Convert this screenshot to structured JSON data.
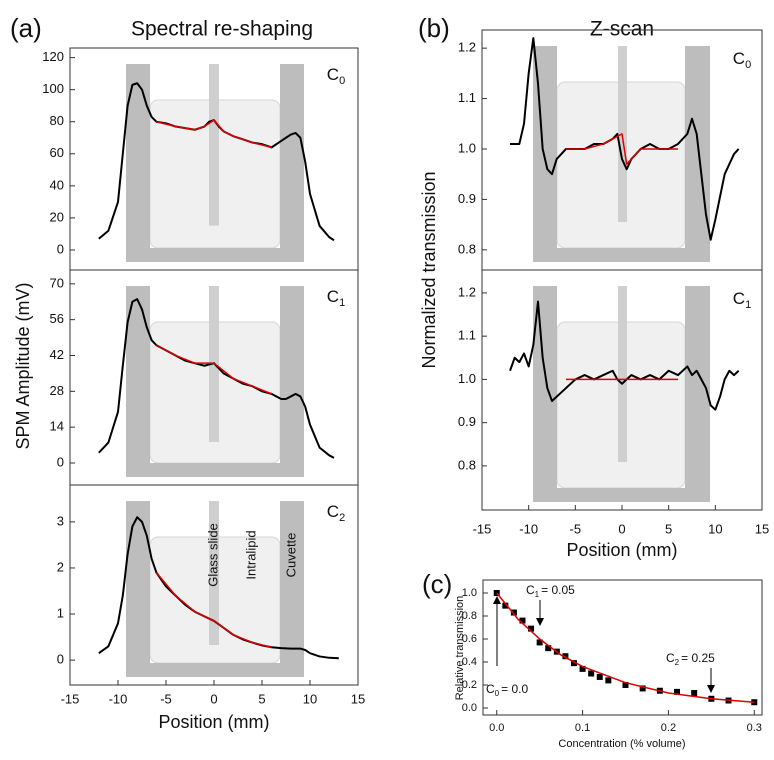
{
  "chart_data": [
    {
      "type": "line",
      "panel_label": "(a)",
      "title": "Spectral re-shaping",
      "xlabel": "Position (mm)",
      "ylabel": "SPM Amplitude (mV)",
      "xlim": [
        -15,
        15
      ],
      "xticks": [
        -15,
        -10,
        -5,
        0,
        5,
        10,
        15
      ],
      "subplots": [
        {
          "tag": {
            "text": "C",
            "sub": "0"
          },
          "ylim": [
            -12.5,
            126
          ],
          "yticks": [
            0,
            20,
            40,
            60,
            80,
            100,
            120
          ],
          "series": [
            {
              "color": "#000000",
              "x": [
                -12,
                -11,
                -10,
                -9.5,
                -9,
                -8.5,
                -8,
                -7.5,
                -7,
                -6.5,
                -6,
                -5,
                -4,
                -3,
                -2,
                -1,
                -0.5,
                0,
                0.5,
                1,
                2,
                3,
                4,
                5,
                6,
                7,
                7.5,
                8,
                8.5,
                9,
                9.5,
                10,
                11,
                12,
                12.5
              ],
              "values": [
                7,
                12,
                30,
                60,
                90,
                103,
                104,
                100,
                90,
                83,
                80,
                79,
                77,
                76,
                75,
                77,
                80,
                81,
                77,
                74,
                71,
                69,
                67,
                66,
                64,
                68,
                70,
                72,
                73,
                70,
                55,
                35,
                15,
                8,
                6
              ]
            },
            {
              "color": "#e00000",
              "x": [
                -6,
                -4,
                -2,
                -1,
                0,
                1,
                2,
                4,
                6
              ],
              "values": [
                80,
                77,
                75,
                77,
                81,
                74,
                71,
                67,
                64
              ]
            }
          ]
        },
        {
          "tag": {
            "text": "C",
            "sub": "1"
          },
          "ylim": [
            -8.6,
            75.4
          ],
          "yticks": [
            0,
            14,
            28,
            42,
            56,
            70
          ],
          "series": [
            {
              "color": "#000000",
              "x": [
                -12,
                -11,
                -10,
                -9.5,
                -9,
                -8.5,
                -8,
                -7.5,
                -7,
                -6.5,
                -6,
                -5,
                -4,
                -3,
                -2,
                -1,
                0,
                0.5,
                1,
                2,
                3,
                4,
                5,
                6,
                7,
                7.5,
                8,
                8.5,
                9,
                9.5,
                10,
                11,
                12,
                12.5
              ],
              "values": [
                4,
                8,
                20,
                38,
                55,
                63,
                64,
                60,
                53,
                48,
                46,
                44,
                42,
                40,
                39,
                38,
                39,
                37,
                35,
                33,
                31,
                30,
                28,
                27,
                25,
                25,
                26,
                27,
                26,
                22,
                15,
                6,
                3,
                2
              ]
            },
            {
              "color": "#e00000",
              "x": [
                -6,
                -4,
                -2,
                0,
                2,
                4,
                6
              ],
              "values": [
                46,
                42,
                39,
                39,
                33,
                30,
                27
              ]
            }
          ]
        },
        {
          "tag": {
            "text": "C",
            "sub": "2"
          },
          "ylim": [
            -0.54,
            3.8
          ],
          "yticks": [
            0,
            1,
            2,
            3
          ],
          "region_labels": [
            "Glass slide",
            "Intralipid",
            "Cuvette"
          ],
          "series": [
            {
              "color": "#000000",
              "x": [
                -12,
                -11,
                -10,
                -9.5,
                -9,
                -8.5,
                -8,
                -7.5,
                -7,
                -6.5,
                -6,
                -5,
                -4,
                -3,
                -2,
                -1,
                0,
                1,
                2,
                3,
                4,
                5,
                6,
                7,
                8,
                9,
                9.5,
                10,
                11,
                12,
                13
              ],
              "values": [
                0.15,
                0.3,
                0.8,
                1.4,
                2.3,
                2.9,
                3.1,
                3.0,
                2.7,
                2.2,
                1.9,
                1.6,
                1.4,
                1.2,
                1.05,
                0.95,
                0.85,
                0.7,
                0.55,
                0.45,
                0.38,
                0.32,
                0.28,
                0.26,
                0.25,
                0.25,
                0.22,
                0.15,
                0.08,
                0.05,
                0.04
              ]
            },
            {
              "color": "#e00000",
              "x": [
                -6,
                -4,
                -2,
                0,
                2,
                4,
                6
              ],
              "values": [
                1.9,
                1.4,
                1.05,
                0.85,
                0.55,
                0.38,
                0.28
              ]
            }
          ]
        }
      ]
    },
    {
      "type": "line",
      "panel_label": "(b)",
      "title": "Z-scan",
      "xlabel": "Position (mm)",
      "ylabel": "Normalized transmission",
      "xlim": [
        -15,
        15
      ],
      "xticks": [
        -15,
        -10,
        -5,
        0,
        5,
        10,
        15
      ],
      "subplots": [
        {
          "tag": {
            "text": "C",
            "sub": "0"
          },
          "ylim": [
            0.76,
            1.236
          ],
          "yticks": [
            0.8,
            0.9,
            {
              "value": 1,
              "label": "1.0"
            },
            1.1,
            1.2
          ],
          "series": [
            {
              "color": "#000000",
              "x": [
                -12,
                -11,
                -10.5,
                -10,
                -9.5,
                -9,
                -8.5,
                -8,
                -7.5,
                -7,
                -6,
                -5,
                -4,
                -3,
                -2,
                -1,
                -0.5,
                0,
                0.5,
                1,
                2,
                3,
                4,
                5,
                6,
                7,
                7.5,
                8,
                8.5,
                9,
                9.5,
                10,
                11,
                12,
                12.5
              ],
              "values": [
                1.01,
                1.01,
                1.05,
                1.15,
                1.22,
                1.13,
                1.0,
                0.96,
                0.95,
                0.98,
                1.0,
                1.0,
                1.0,
                1.01,
                1.01,
                1.02,
                1.03,
                0.98,
                0.96,
                0.98,
                1.0,
                1.01,
                1.0,
                1.0,
                1.01,
                1.03,
                1.06,
                1.03,
                0.95,
                0.87,
                0.82,
                0.86,
                0.95,
                0.99,
                1.0
              ]
            },
            {
              "color": "#e00000",
              "x": [
                -6,
                -4,
                -2,
                -1,
                0,
                0.5,
                1,
                2,
                4,
                6
              ],
              "values": [
                1.0,
                1.0,
                1.01,
                1.02,
                1.03,
                0.97,
                0.98,
                1.0,
                1.0,
                1.0
              ]
            }
          ]
        },
        {
          "tag": {
            "text": "C",
            "sub": "1"
          },
          "ylim": [
            0.698,
            1.253
          ],
          "yticks": [
            0.8,
            0.9,
            {
              "value": 1,
              "label": "1.0"
            },
            1.1,
            1.2
          ],
          "series": [
            {
              "color": "#000000",
              "x": [
                -12,
                -11.5,
                -11,
                -10.5,
                -10,
                -9.5,
                -9,
                -8.5,
                -8,
                -7.5,
                -7,
                -6,
                -5,
                -4,
                -3,
                -2,
                -1,
                -0.5,
                0,
                0.5,
                1,
                2,
                3,
                4,
                5,
                6,
                7,
                7.5,
                8,
                8.5,
                9,
                9.5,
                10,
                10.5,
                11,
                11.5,
                12,
                12.5
              ],
              "values": [
                1.02,
                1.05,
                1.04,
                1.06,
                1.03,
                1.08,
                1.18,
                1.05,
                0.98,
                0.95,
                0.96,
                0.98,
                1.0,
                1.01,
                1.0,
                1.01,
                1.02,
                1.0,
                0.99,
                1.0,
                1.01,
                1.0,
                1.01,
                1.0,
                1.02,
                1.01,
                1.03,
                1.01,
                1.02,
                1.0,
                0.98,
                0.94,
                0.93,
                0.96,
                1.0,
                1.02,
                1.01,
                1.02
              ]
            },
            {
              "color": "#e00000",
              "x": [
                -6,
                -3,
                0,
                3,
                6
              ],
              "values": [
                1.0,
                1.0,
                1.0,
                1.0,
                1.0
              ]
            }
          ]
        }
      ]
    },
    {
      "type": "scatter",
      "panel_label": "(c)",
      "xlabel": "Concentration (% volume)",
      "ylabel": "Relative transmission",
      "xlim": [
        -0.016,
        0.309
      ],
      "xticks": [
        {
          "value": 0,
          "label": "0.0"
        },
        0.1,
        0.2,
        0.3
      ],
      "annotations": [
        {
          "text": "C",
          "sub": "0",
          "rest": "= 0.0"
        },
        {
          "text": "C",
          "sub": "1",
          "rest": "= 0.05"
        },
        {
          "text": "C",
          "sub": "2",
          "rest": "= 0.25"
        }
      ],
      "subplots": [
        {
          "ylim": [
            -0.061,
            1.113
          ],
          "yticks": [
            {
              "value": 0,
              "label": "0.0"
            },
            0.2,
            0.4,
            0.6,
            0.8,
            {
              "value": 1,
              "label": "1.0"
            }
          ],
          "series": [
            {
              "color": "#000000",
              "style": "markers",
              "x": [
                0,
                0.01,
                0.02,
                0.03,
                0.04,
                0.05,
                0.06,
                0.07,
                0.08,
                0.09,
                0.1,
                0.11,
                0.12,
                0.13,
                0.15,
                0.17,
                0.19,
                0.21,
                0.23,
                0.25,
                0.27,
                0.3
              ],
              "values": [
                1.0,
                0.89,
                0.83,
                0.76,
                0.69,
                0.57,
                0.52,
                0.49,
                0.45,
                0.39,
                0.34,
                0.3,
                0.27,
                0.24,
                0.2,
                0.17,
                0.15,
                0.14,
                0.13,
                0.08,
                0.065,
                0.05
              ]
            },
            {
              "color": "#e00000",
              "style": "line",
              "x": [
                0,
                0.025,
                0.05,
                0.075,
                0.1,
                0.15,
                0.2,
                0.25,
                0.3
              ],
              "values": [
                1.0,
                0.77,
                0.6,
                0.46,
                0.36,
                0.22,
                0.13,
                0.08,
                0.05
              ]
            }
          ]
        }
      ]
    }
  ]
}
